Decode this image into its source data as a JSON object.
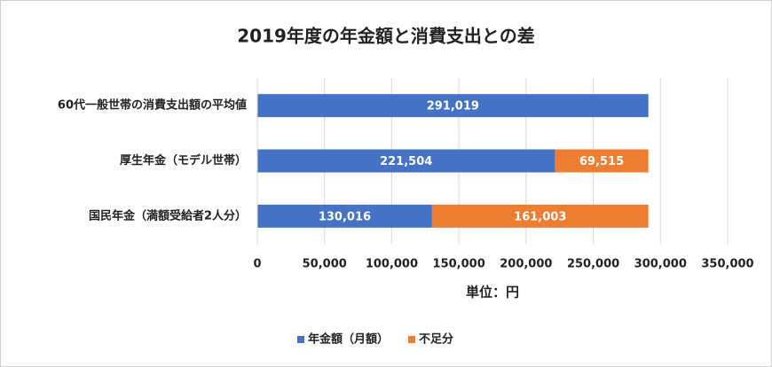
{
  "chart_data": {
    "type": "stacked-barh",
    "title": "2019年度の年金額と消費支出との差",
    "categories": [
      "60代一般世帯の消費支出額の平均値",
      "厚生年金（モデル世帯）",
      "国民年金（満額受給者2人分）"
    ],
    "series": [
      {
        "name": "年金額（月額）",
        "color": "#4472c4",
        "values": [
          291019,
          221504,
          130016
        ],
        "value_labels": [
          "291,019",
          "221,504",
          "130,016"
        ]
      },
      {
        "name": "不足分",
        "color": "#ed7d31",
        "values": [
          null,
          69515,
          161003
        ],
        "value_labels": [
          null,
          "69,515",
          "161,003"
        ]
      }
    ],
    "xlim": [
      0,
      350000
    ],
    "xticks": [
      0,
      {
        "value": 50000,
        "label": "50,000"
      },
      {
        "value": 100000,
        "label": "100,000"
      },
      {
        "value": 150000,
        "label": "150,000"
      },
      {
        "value": 200000,
        "label": "200,000"
      },
      {
        "value": 250000,
        "label": "250,000"
      },
      {
        "value": 300000,
        "label": "300,000"
      },
      {
        "value": 350000,
        "label": "350,000"
      }
    ],
    "xlabel": "単位：円",
    "grid": true,
    "legend": "bottom"
  }
}
